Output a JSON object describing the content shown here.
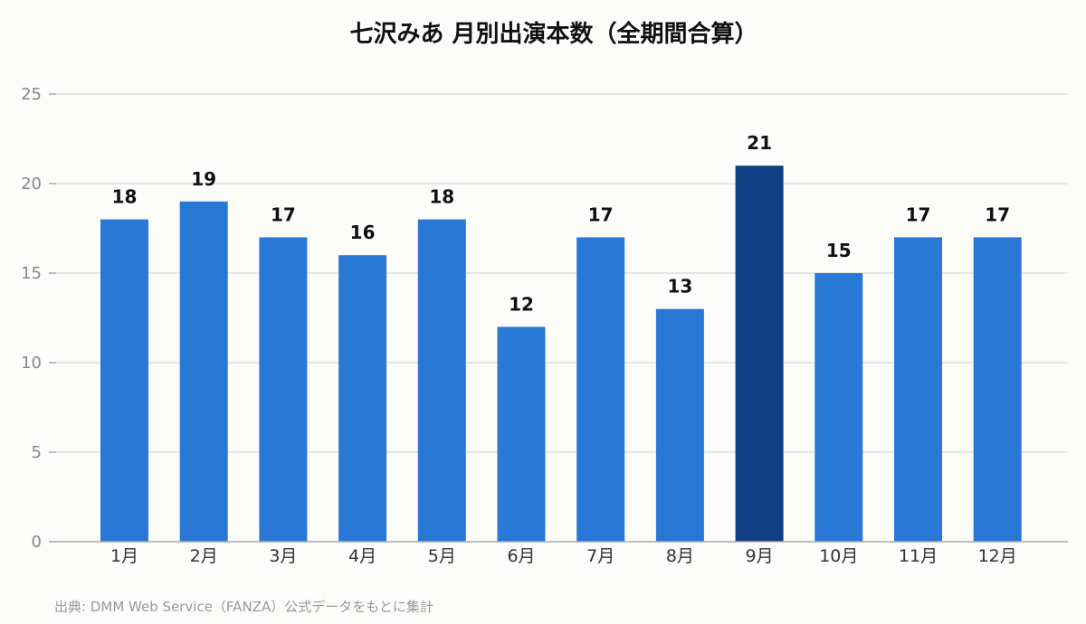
{
  "chart_data": {
    "type": "bar",
    "title": "七沢みあ 月別出演本数（全期間合算）",
    "categories": [
      "1月",
      "2月",
      "3月",
      "4月",
      "5月",
      "6月",
      "7月",
      "8月",
      "9月",
      "10月",
      "11月",
      "12月"
    ],
    "values": [
      18,
      19,
      17,
      16,
      18,
      12,
      17,
      13,
      21,
      15,
      17,
      17
    ],
    "yticks": [
      0,
      5,
      10,
      15,
      20,
      25
    ],
    "ylim": [
      0,
      25
    ],
    "grid": true,
    "highlight_category": "9月",
    "colors": {
      "bar": "#2a78d6",
      "highlight": "#0f3f82",
      "grid": "#dddddd",
      "axis": "#aaaaaa"
    },
    "source": "出典: DMM Web Service（FANZA）公式データをもとに集計"
  }
}
